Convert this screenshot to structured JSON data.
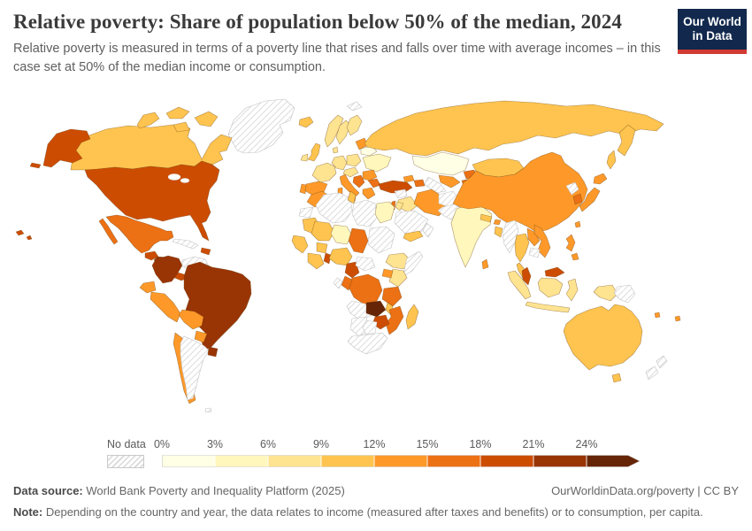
{
  "header": {
    "title": "Relative poverty: Share of population below 50% of the median, 2024",
    "subtitle": "Relative poverty is measured in terms of a poverty line that rises and falls over time with average incomes – in this case set at 50% of the median income or consumption."
  },
  "logo": {
    "line1": "Our World",
    "line2": "in Data",
    "bg_color": "#12294d",
    "bar_color": "#d23a32"
  },
  "footer": {
    "source_label": "Data source:",
    "source": "World Bank Poverty and Inequality Platform (2025)",
    "credit": "OurWorldinData.org/poverty | CC BY",
    "note_label": "Note:",
    "note": "Depending on the country and year, the data relates to income (measured after taxes and benefits) or to consumption, per capita."
  },
  "chart_data": {
    "type": "heatmap",
    "subtype": "choropleth-world-map",
    "title": "Relative poverty: Share of population below 50% of the median, 2024",
    "unit": "% of population below 50% of median income or consumption",
    "year": "2024",
    "legend": {
      "no_data_label": "No data",
      "tick_labels": [
        "0%",
        "3%",
        "6%",
        "9%",
        "12%",
        "15%",
        "18%",
        "21%",
        "24%"
      ],
      "bins": [
        {
          "range": "0–3%",
          "color": "#FFFFE5"
        },
        {
          "range": "3–6%",
          "color": "#FFF7BC"
        },
        {
          "range": "6–9%",
          "color": "#FEE391"
        },
        {
          "range": "9–12%",
          "color": "#FEC44F"
        },
        {
          "range": "12–15%",
          "color": "#FE9929"
        },
        {
          "range": "15–18%",
          "color": "#EC7014"
        },
        {
          "range": "18–21%",
          "color": "#CC4C02"
        },
        {
          "range": "21–24%",
          "color": "#993404"
        },
        {
          "range": "24%+",
          "color": "#662506"
        }
      ]
    },
    "countries": {
      "greenland": {
        "name": "Greenland",
        "band": "nd"
      },
      "svalbard": {
        "name": "Svalbard",
        "band": "nd"
      },
      "iceland": {
        "name": "Iceland",
        "band": 3
      },
      "canada": {
        "name": "Canada",
        "band": 3
      },
      "arctic1": {
        "name": "Canadian Arctic Islands",
        "band": 3
      },
      "arctic2": {
        "name": "Canadian Arctic Islands",
        "band": 3
      },
      "arctic3": {
        "name": "Baffin Island",
        "band": 3
      },
      "arctic4": {
        "name": "Canadian Arctic Islands",
        "band": 3
      },
      "alaska": {
        "name": "United States (Alaska)",
        "band": 6
      },
      "aleutians": {
        "name": "Aleutian Islands",
        "band": 6
      },
      "usa": {
        "name": "United States",
        "band": 6
      },
      "hawaii": {
        "name": "Hawaii",
        "band": 6
      },
      "mexico": {
        "name": "Mexico",
        "band": 5
      },
      "guatemala": {
        "name": "Guatemala",
        "band": 6
      },
      "honduras_nicaragua": {
        "name": "Honduras & Nicaragua",
        "band": 7
      },
      "costa_panama": {
        "name": "Costa Rica & Panama",
        "band": 6
      },
      "cuba": {
        "name": "Cuba",
        "band": "nd"
      },
      "hispaniola": {
        "name": "Dominican Republic & Haiti",
        "band": 6
      },
      "colombia": {
        "name": "Colombia",
        "band": 7
      },
      "venezuela": {
        "name": "Venezuela",
        "band": "nd"
      },
      "guyana": {
        "name": "Guyana",
        "band": 6
      },
      "suriname": {
        "name": "Suriname",
        "band": "nd"
      },
      "ecuador": {
        "name": "Ecuador",
        "band": 4
      },
      "peru": {
        "name": "Peru",
        "band": 4
      },
      "brazil": {
        "name": "Brazil",
        "band": 7
      },
      "bolivia": {
        "name": "Bolivia",
        "band": 4
      },
      "paraguay": {
        "name": "Paraguay",
        "band": 4
      },
      "chile": {
        "name": "Chile",
        "band": 4
      },
      "argentina": {
        "name": "Argentina",
        "band": "nd"
      },
      "uruguay": {
        "name": "Uruguay",
        "band": 7
      },
      "falklands": {
        "name": "Falkland Islands",
        "band": "nd"
      },
      "uk": {
        "name": "United Kingdom",
        "band": 3
      },
      "ireland": {
        "name": "Ireland",
        "band": 2
      },
      "norway": {
        "name": "Norway",
        "band": 2
      },
      "sweden": {
        "name": "Sweden",
        "band": 2
      },
      "finland": {
        "name": "Finland",
        "band": 2
      },
      "denmark": {
        "name": "Denmark",
        "band": 2
      },
      "germany": {
        "name": "Germany",
        "band": 2
      },
      "france": {
        "name": "France",
        "band": 2
      },
      "spain": {
        "name": "Spain",
        "band": 4
      },
      "portugal": {
        "name": "Portugal",
        "band": 4
      },
      "italy": {
        "name": "Italy",
        "band": 4
      },
      "sicily": {
        "name": "Italy (Sicily)",
        "band": 4
      },
      "sardinia": {
        "name": "Italy (Sardinia)",
        "band": 4
      },
      "alpine": {
        "name": "Central Europe",
        "band": 2
      },
      "poland": {
        "name": "Poland",
        "band": 2
      },
      "baltics": {
        "name": "Baltic States",
        "band": 4
      },
      "belarus": {
        "name": "Belarus",
        "band": 0
      },
      "ukraine": {
        "name": "Ukraine",
        "band": 1
      },
      "romania": {
        "name": "Romania",
        "band": 4
      },
      "balkans": {
        "name": "Western Balkans",
        "band": 5
      },
      "bulgaria": {
        "name": "Bulgaria",
        "band": 5
      },
      "greece": {
        "name": "Greece",
        "band": 4
      },
      "turkey": {
        "name": "Turkey",
        "band": 6
      },
      "russia": {
        "name": "Russia",
        "band": 3
      },
      "kamchatka": {
        "name": "Russia (Kamchatka)",
        "band": 3
      },
      "sakhalin": {
        "name": "Russia (Sakhalin)",
        "band": 3
      },
      "kazakhstan": {
        "name": "Kazakhstan",
        "band": 0
      },
      "uzbekistan": {
        "name": "Uzbekistan",
        "band": 4
      },
      "turkmenistan": {
        "name": "Turkmenistan",
        "band": "nd"
      },
      "kyrgyzstan": {
        "name": "Kyrgyzstan",
        "band": 5
      },
      "tajikistan": {
        "name": "Tajikistan",
        "band": 5
      },
      "georgia": {
        "name": "Georgia",
        "band": 4
      },
      "azerbaijan": {
        "name": "Azerbaijan",
        "band": 5
      },
      "syria": {
        "name": "Syria",
        "band": "nd"
      },
      "iraq": {
        "name": "Iraq",
        "band": 2
      },
      "iran": {
        "name": "Iran",
        "band": 4
      },
      "israel": {
        "name": "Israel",
        "band": 5
      },
      "jordan": {
        "name": "Jordan",
        "band": 2
      },
      "saudi": {
        "name": "Saudi Arabia",
        "band": "nd"
      },
      "yemen": {
        "name": "Yemen",
        "band": 3
      },
      "oman": {
        "name": "Oman",
        "band": "nd"
      },
      "morocco": {
        "name": "Morocco",
        "band": 4
      },
      "wsahara": {
        "name": "Western Sahara",
        "band": "nd"
      },
      "algeria": {
        "name": "Algeria",
        "band": "nd"
      },
      "tunisia": {
        "name": "Tunisia",
        "band": 3
      },
      "libya": {
        "name": "Libya",
        "band": "nd"
      },
      "egypt": {
        "name": "Egypt",
        "band": 1
      },
      "mauritania": {
        "name": "Mauritania",
        "band": 3
      },
      "mali": {
        "name": "Mali",
        "band": 3
      },
      "niger": {
        "name": "Niger",
        "band": 1
      },
      "chad": {
        "name": "Chad",
        "band": 5
      },
      "sudan": {
        "name": "Sudan",
        "band": "nd"
      },
      "senegal": {
        "name": "Senegal & Guinea",
        "band": 3
      },
      "cote_ghana": {
        "name": "Côte d'Ivoire & Ghana",
        "band": 3
      },
      "burkina": {
        "name": "Burkina Faso",
        "band": 3
      },
      "benin_togo": {
        "name": "Benin & Togo",
        "band": 6
      },
      "nigeria": {
        "name": "Nigeria",
        "band": 3
      },
      "cameroon": {
        "name": "Cameroon",
        "band": 6
      },
      "car": {
        "name": "Central African Republic",
        "band": "nd"
      },
      "ethiopia": {
        "name": "Ethiopia",
        "band": 2
      },
      "somalia": {
        "name": "Somalia",
        "band": "nd"
      },
      "kenya": {
        "name": "Kenya",
        "band": 2
      },
      "uganda": {
        "name": "Uganda",
        "band": 4
      },
      "drc": {
        "name": "Democratic Republic of Congo",
        "band": 5
      },
      "congo": {
        "name": "Republic of Congo",
        "band": 5
      },
      "gabon": {
        "name": "Gabon",
        "band": "nd"
      },
      "tanzania": {
        "name": "Tanzania",
        "band": 5
      },
      "angola": {
        "name": "Angola",
        "band": "nd"
      },
      "zambia": {
        "name": "Zambia",
        "band": 8
      },
      "malawi": {
        "name": "Malawi",
        "band": 3
      },
      "mozambique": {
        "name": "Mozambique",
        "band": 5
      },
      "zimbabwe": {
        "name": "Zimbabwe",
        "band": 6
      },
      "namibia": {
        "name": "Namibia",
        "band": "nd"
      },
      "botswana": {
        "name": "Botswana",
        "band": "nd"
      },
      "southafrica": {
        "name": "South Africa",
        "band": "nd"
      },
      "madagascar": {
        "name": "Madagascar",
        "band": 3
      },
      "afghanistan": {
        "name": "Afghanistan",
        "band": "nd"
      },
      "pakistan": {
        "name": "Pakistan",
        "band": "nd"
      },
      "india": {
        "name": "India",
        "band": 1
      },
      "nepal": {
        "name": "Nepal",
        "band": 3
      },
      "bhutan": {
        "name": "Bhutan",
        "band": 4
      },
      "bangladesh": {
        "name": "Bangladesh",
        "band": 3
      },
      "srilanka": {
        "name": "Sri Lanka",
        "band": 4
      },
      "mongolia": {
        "name": "Mongolia",
        "band": 3
      },
      "china": {
        "name": "China",
        "band": 4
      },
      "taiwan": {
        "name": "Taiwan",
        "band": 4
      },
      "nkorea": {
        "name": "North Korea",
        "band": "nd"
      },
      "skorea": {
        "name": "South Korea",
        "band": 5
      },
      "japan": {
        "name": "Japan",
        "band": 4
      },
      "myanmar": {
        "name": "Myanmar",
        "band": "nd"
      },
      "thailand": {
        "name": "Thailand",
        "band": 3
      },
      "laos": {
        "name": "Laos",
        "band": 4
      },
      "vietnam": {
        "name": "Vietnam",
        "band": 4
      },
      "cambodia": {
        "name": "Cambodia",
        "band": "nd"
      },
      "malaysia": {
        "name": "Malaysia",
        "band": 6
      },
      "sumatra": {
        "name": "Indonesia (Sumatra)",
        "band": 2
      },
      "java": {
        "name": "Indonesia (Java)",
        "band": 2
      },
      "borneo_id": {
        "name": "Indonesia (Kalimantan)",
        "band": 2
      },
      "sulawesi": {
        "name": "Indonesia (Sulawesi)",
        "band": 2
      },
      "wpapua": {
        "name": "Indonesia (Papua)",
        "band": 2
      },
      "png": {
        "name": "Papua New Guinea",
        "band": "nd"
      },
      "philippines": {
        "name": "Philippines",
        "band": 4
      },
      "fiji": {
        "name": "Fiji",
        "band": 4
      },
      "vanuatu": {
        "name": "Vanuatu",
        "band": 4
      },
      "australia": {
        "name": "Australia",
        "band": 3
      },
      "tasmania": {
        "name": "Australia (Tasmania)",
        "band": 3
      },
      "nz": {
        "name": "New Zealand",
        "band": "nd"
      }
    }
  }
}
